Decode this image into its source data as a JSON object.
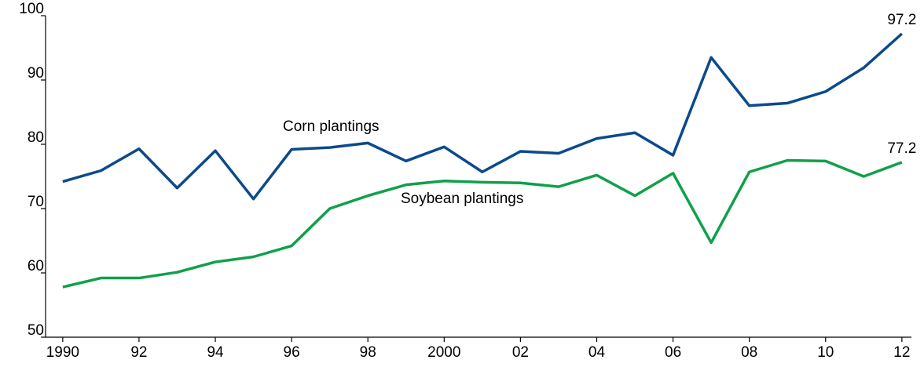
{
  "chart_data": {
    "type": "line",
    "x": [
      1990,
      1991,
      1992,
      1993,
      1994,
      1995,
      1996,
      1997,
      1998,
      1999,
      2000,
      2001,
      2002,
      2003,
      2004,
      2005,
      2006,
      2007,
      2008,
      2009,
      2010,
      2011,
      2012
    ],
    "series": [
      {
        "name": "Corn plantings",
        "color": "#0b4a8b",
        "values": [
          74.2,
          75.9,
          79.3,
          73.2,
          79.0,
          71.5,
          79.2,
          79.5,
          80.2,
          77.4,
          79.6,
          75.7,
          78.9,
          78.6,
          80.9,
          81.8,
          78.3,
          93.5,
          86.0,
          86.4,
          88.2,
          91.9,
          97.2
        ]
      },
      {
        "name": "Soybean plantings",
        "color": "#10a04b",
        "values": [
          57.8,
          59.2,
          59.2,
          60.1,
          61.7,
          62.5,
          64.2,
          70.0,
          72.0,
          73.7,
          74.3,
          74.1,
          74.0,
          73.4,
          75.2,
          72.0,
          75.5,
          64.7,
          75.7,
          77.5,
          77.4,
          75.0,
          77.2
        ]
      }
    ],
    "xlim": [
      1989.55,
      2012.25
    ],
    "xticks": [
      {
        "value": 1990,
        "label": "1990"
      },
      {
        "value": 1992,
        "label": "92"
      },
      {
        "value": 1994,
        "label": "94"
      },
      {
        "value": 1996,
        "label": "96"
      },
      {
        "value": 1998,
        "label": "98"
      },
      {
        "value": 2000,
        "label": "2000"
      },
      {
        "value": 2002,
        "label": "02"
      },
      {
        "value": 2004,
        "label": "04"
      },
      {
        "value": 2006,
        "label": "06"
      },
      {
        "value": 2008,
        "label": "08"
      },
      {
        "value": 2010,
        "label": "10"
      },
      {
        "value": 2012,
        "label": "12"
      }
    ],
    "ylim": [
      50,
      100
    ],
    "yticks": [
      50,
      60,
      70,
      80,
      90,
      100
    ]
  }
}
